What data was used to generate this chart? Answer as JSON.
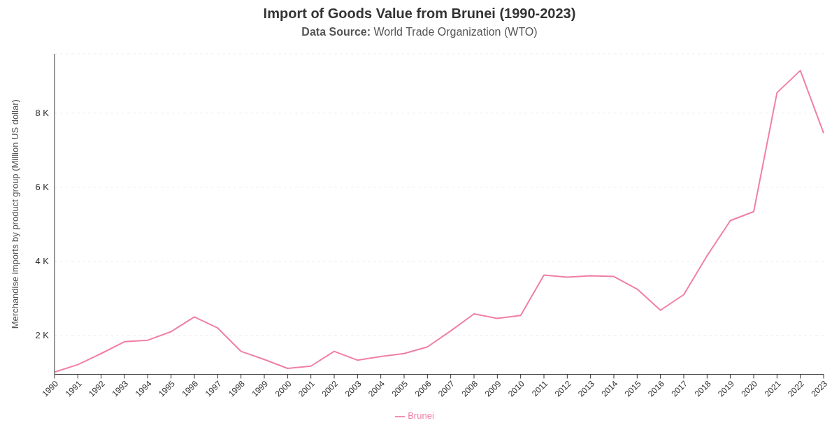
{
  "chart_data": {
    "type": "line",
    "title": "Import of Goods Value from Brunei (1990-2023)",
    "subtitle": "Data Source: World Trade Organization (WTO)",
    "ylabel": "Merchandise imports by product group (Million US dollar)",
    "categories": [
      "1990",
      "1991",
      "1992",
      "1993",
      "1994",
      "1995",
      "1996",
      "1997",
      "1998",
      "1999",
      "2000",
      "2001",
      "2002",
      "2003",
      "2004",
      "2005",
      "2006",
      "2007",
      "2008",
      "2009",
      "2010",
      "2011",
      "2012",
      "2013",
      "2014",
      "2015",
      "2016",
      "2017",
      "2018",
      "2019",
      "2020",
      "2021",
      "2022",
      "2023"
    ],
    "series": [
      {
        "name": "Brunei",
        "color": "#f07fa8",
        "values": [
          1010,
          1210,
          1510,
          1830,
          1870,
          2100,
          2500,
          2200,
          1570,
          1350,
          1110,
          1170,
          1570,
          1330,
          1430,
          1510,
          1690,
          2120,
          2580,
          2460,
          2540,
          3630,
          3570,
          3610,
          3590,
          3250,
          2680,
          3100,
          4150,
          5100,
          5340,
          8550,
          9150,
          7460
        ]
      }
    ],
    "ylim": [
      950,
      9600
    ],
    "yticks": [
      {
        "value": 2000,
        "label": "2 K"
      },
      {
        "value": 4000,
        "label": "4 K"
      },
      {
        "value": 6000,
        "label": "6 K"
      },
      {
        "value": 8000,
        "label": "8 K"
      }
    ],
    "grid": "y",
    "legend": "bottom",
    "marker": "none",
    "line_style": "solid"
  }
}
